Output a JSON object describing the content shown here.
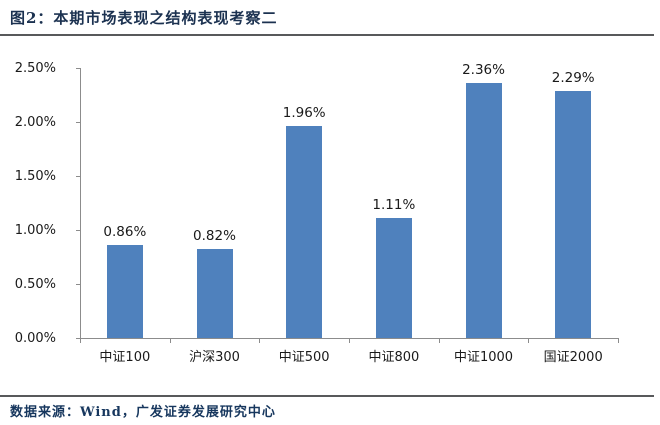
{
  "figure": {
    "title": "图2：本期市场表现之结构表现考察二",
    "source_note": "数据来源：Wind，广发证券发展研究中心"
  },
  "colors": {
    "bar": "#4F81BD",
    "title_text": "#1B3150",
    "footer_text": "#17375E",
    "rule_line": "#58595B",
    "axis_line": "#8C8C8C",
    "tick_text": "#1A1A1A"
  },
  "chart_data": {
    "type": "bar",
    "title": "本期市场表现之结构表现考察二",
    "categories": [
      "中证100",
      "沪深300",
      "中证500",
      "中证800",
      "中证1000",
      "国证2000"
    ],
    "values": [
      0.86,
      0.82,
      1.96,
      1.11,
      2.36,
      2.29
    ],
    "value_labels": [
      "0.86%",
      "0.82%",
      "1.96%",
      "1.11%",
      "2.36%",
      "2.29%"
    ],
    "y_ticks": [
      "0.00%",
      "0.50%",
      "1.00%",
      "1.50%",
      "2.00%",
      "2.50%"
    ],
    "ylim": [
      0,
      2.5
    ],
    "xlabel": "",
    "ylabel": "",
    "grid": false,
    "legend": "none",
    "data_labels": true
  }
}
